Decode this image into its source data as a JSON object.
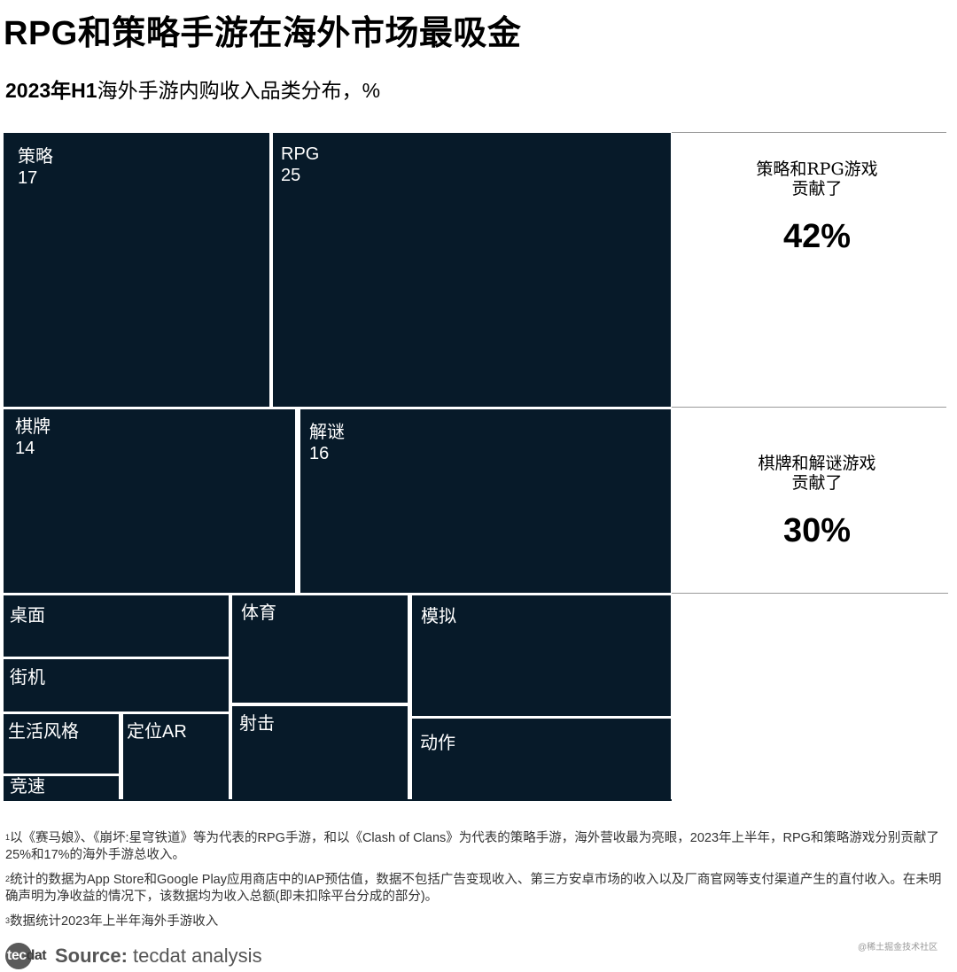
{
  "header": {
    "title": "RPG和策略手游在海外市场最吸金",
    "subtitle_bold": "2023年H1",
    "subtitle_rest": "海外手游内购收入品类分布，%"
  },
  "chart_data": {
    "type": "treemap",
    "unit": "%",
    "tiles": [
      {
        "label": "策略",
        "value": 17
      },
      {
        "label": "RPG",
        "value": 25
      },
      {
        "label": "棋牌",
        "value": 14
      },
      {
        "label": "解谜",
        "value": 16
      },
      {
        "label": "桌面",
        "value": null
      },
      {
        "label": "街机",
        "value": null
      },
      {
        "label": "生活风格",
        "value": null
      },
      {
        "label": "定位AR",
        "value": null
      },
      {
        "label": "竞速",
        "value": null
      },
      {
        "label": "体育",
        "value": null
      },
      {
        "label": "射击",
        "value": null
      },
      {
        "label": "模拟",
        "value": null
      },
      {
        "label": "动作",
        "value": null
      }
    ]
  },
  "annotations": [
    {
      "line1": "策略和RPG游戏",
      "line2": "贡献了",
      "value": "42%"
    },
    {
      "line1": "棋牌和解谜游戏",
      "line2": "贡献了",
      "value": "30%"
    }
  ],
  "notes": [
    {
      "mark": "1",
      "text": "以《赛马娘》、《崩坏:星穹铁道》等为代表的RPG手游，和以《Clash of Clans》为代表的策略手游，海外营收最为亮眼，2023年上半年，RPG和策略游戏分别贡献了25%和17%的海外手游总收入。"
    },
    {
      "mark": "2",
      "text": "统计的数据为App Store和Google Play应用商店中的IAP预估值，数据不包括广告变现收入、第三方安卓市场的收入以及厂商官网等支付渠道产生的直付收入。在未明确声明为净收益的情况下，该数据均为收入总额(即未扣除平台分成的部分)。"
    },
    {
      "mark": "3",
      "text": "数据统计2023年上半年海外手游收入"
    }
  ],
  "watermark": "@稀土掘金技术社区",
  "logo": {
    "part1": "tec",
    "part2": "dat"
  },
  "source": {
    "label": "Source:",
    "text": "tecdat analysis"
  }
}
